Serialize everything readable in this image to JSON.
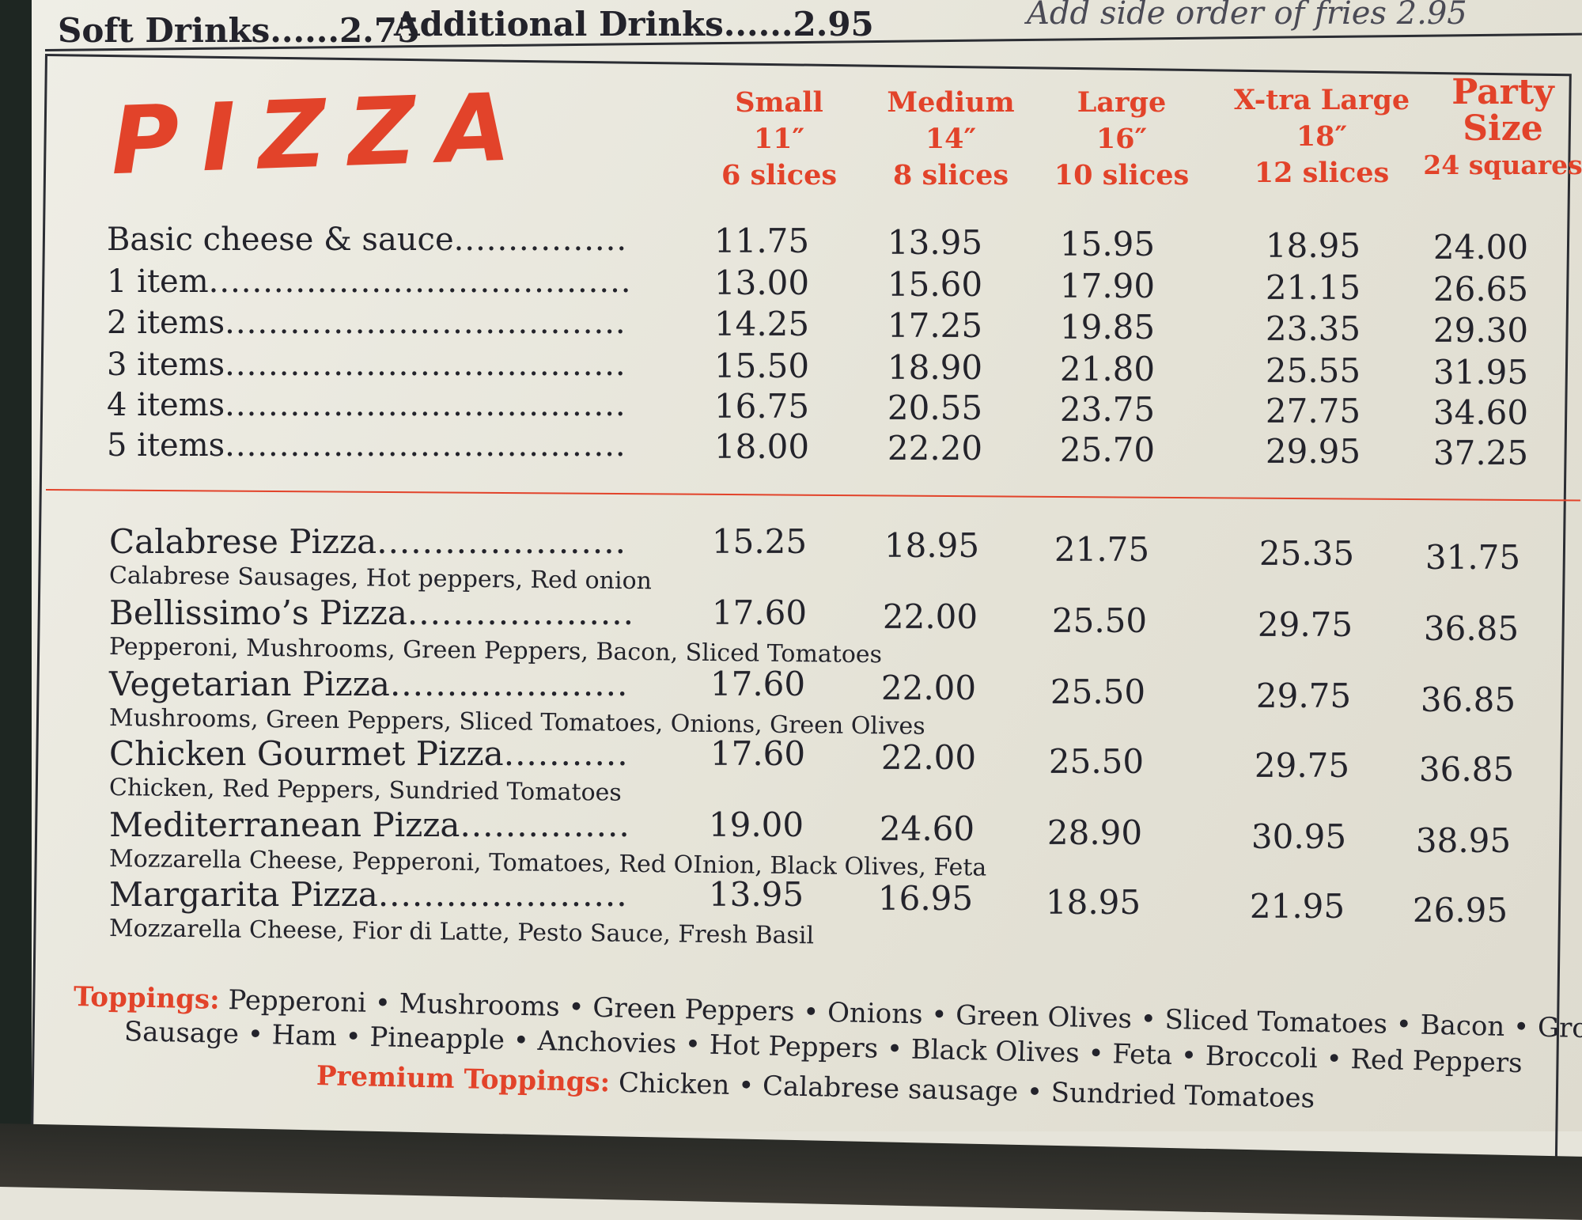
{
  "header": {
    "soft_drinks": "Soft Drinks......2.75",
    "additional_drinks": "Additional Drinks......2.95",
    "fries": "Add side order of fries 2.95"
  },
  "title": "PIZZA",
  "colors": {
    "accent_red": "#e2432a",
    "text": "#23232b",
    "paper": "#e6e4da"
  },
  "sizes": [
    {
      "name": "Small",
      "dim": "11″",
      "count": "6 slices"
    },
    {
      "name": "Medium",
      "dim": "14″",
      "count": "8 slices"
    },
    {
      "name": "Large",
      "dim": "16″",
      "count": "10 slices"
    },
    {
      "name": "X-tra Large",
      "dim": "18″",
      "count": "12 slices"
    },
    {
      "name": "Party",
      "dim": "Size",
      "count": "24 squares"
    }
  ],
  "basic": [
    {
      "label": "Basic cheese & sauce",
      "prices": [
        "11.75",
        "13.95",
        "15.95",
        "18.95",
        "24.00"
      ]
    },
    {
      "label": "1 item",
      "prices": [
        "13.00",
        "15.60",
        "17.90",
        "21.15",
        "26.65"
      ]
    },
    {
      "label": "2 items",
      "prices": [
        "14.25",
        "17.25",
        "19.85",
        "23.35",
        "29.30"
      ]
    },
    {
      "label": "3 items",
      "prices": [
        "15.50",
        "18.90",
        "21.80",
        "25.55",
        "31.95"
      ]
    },
    {
      "label": "4 items",
      "prices": [
        "16.75",
        "20.55",
        "23.75",
        "27.75",
        "34.60"
      ]
    },
    {
      "label": "5 items",
      "prices": [
        "18.00",
        "22.20",
        "25.70",
        "29.95",
        "37.25"
      ]
    }
  ],
  "specialty": [
    {
      "name": "Calabrese Pizza",
      "desc": "Calabrese Sausages, Hot peppers, Red onion",
      "prices": [
        "15.25",
        "18.95",
        "21.75",
        "25.35",
        "31.75"
      ]
    },
    {
      "name": "Bellissimo’s Pizza",
      "desc": "Pepperoni, Mushrooms, Green Peppers, Bacon, Sliced Tomatoes",
      "prices": [
        "17.60",
        "22.00",
        "25.50",
        "29.75",
        "36.85"
      ]
    },
    {
      "name": "Vegetarian Pizza",
      "desc": "Mushrooms, Green Peppers, Sliced Tomatoes, Onions, Green Olives",
      "prices": [
        "17.60",
        "22.00",
        "25.50",
        "29.75",
        "36.85"
      ]
    },
    {
      "name": "Chicken Gourmet Pizza",
      "desc": "Chicken, Red Peppers, Sundried Tomatoes",
      "prices": [
        "17.60",
        "22.00",
        "25.50",
        "29.75",
        "36.85"
      ]
    },
    {
      "name": "Mediterranean Pizza",
      "desc": "Mozzarella Cheese, Pepperoni, Tomatoes, Red OInion, Black Olives, Feta",
      "prices": [
        "19.00",
        "24.60",
        "28.90",
        "30.95",
        "38.95"
      ]
    },
    {
      "name": "Margarita Pizza",
      "desc": "Mozzarella Cheese, Fior di Latte, Pesto Sauce, Fresh Basil",
      "prices": [
        "13.95",
        "16.95",
        "18.95",
        "21.95",
        "26.95"
      ]
    }
  ],
  "toppings": {
    "label": "Toppings:",
    "line1": "Pepperoni • Mushrooms • Green Peppers • Onions • Green Olives • Sliced Tomatoes • Bacon • Ground Beef",
    "line2": "Sausage • Ham • Pineapple • Anchovies • Hot Peppers • Black Olives • Feta • Broccoli • Red Peppers",
    "premium_label": "Premium Toppings:",
    "premium": "Chicken • Calabrese sausage • Sundried Tomatoes"
  }
}
